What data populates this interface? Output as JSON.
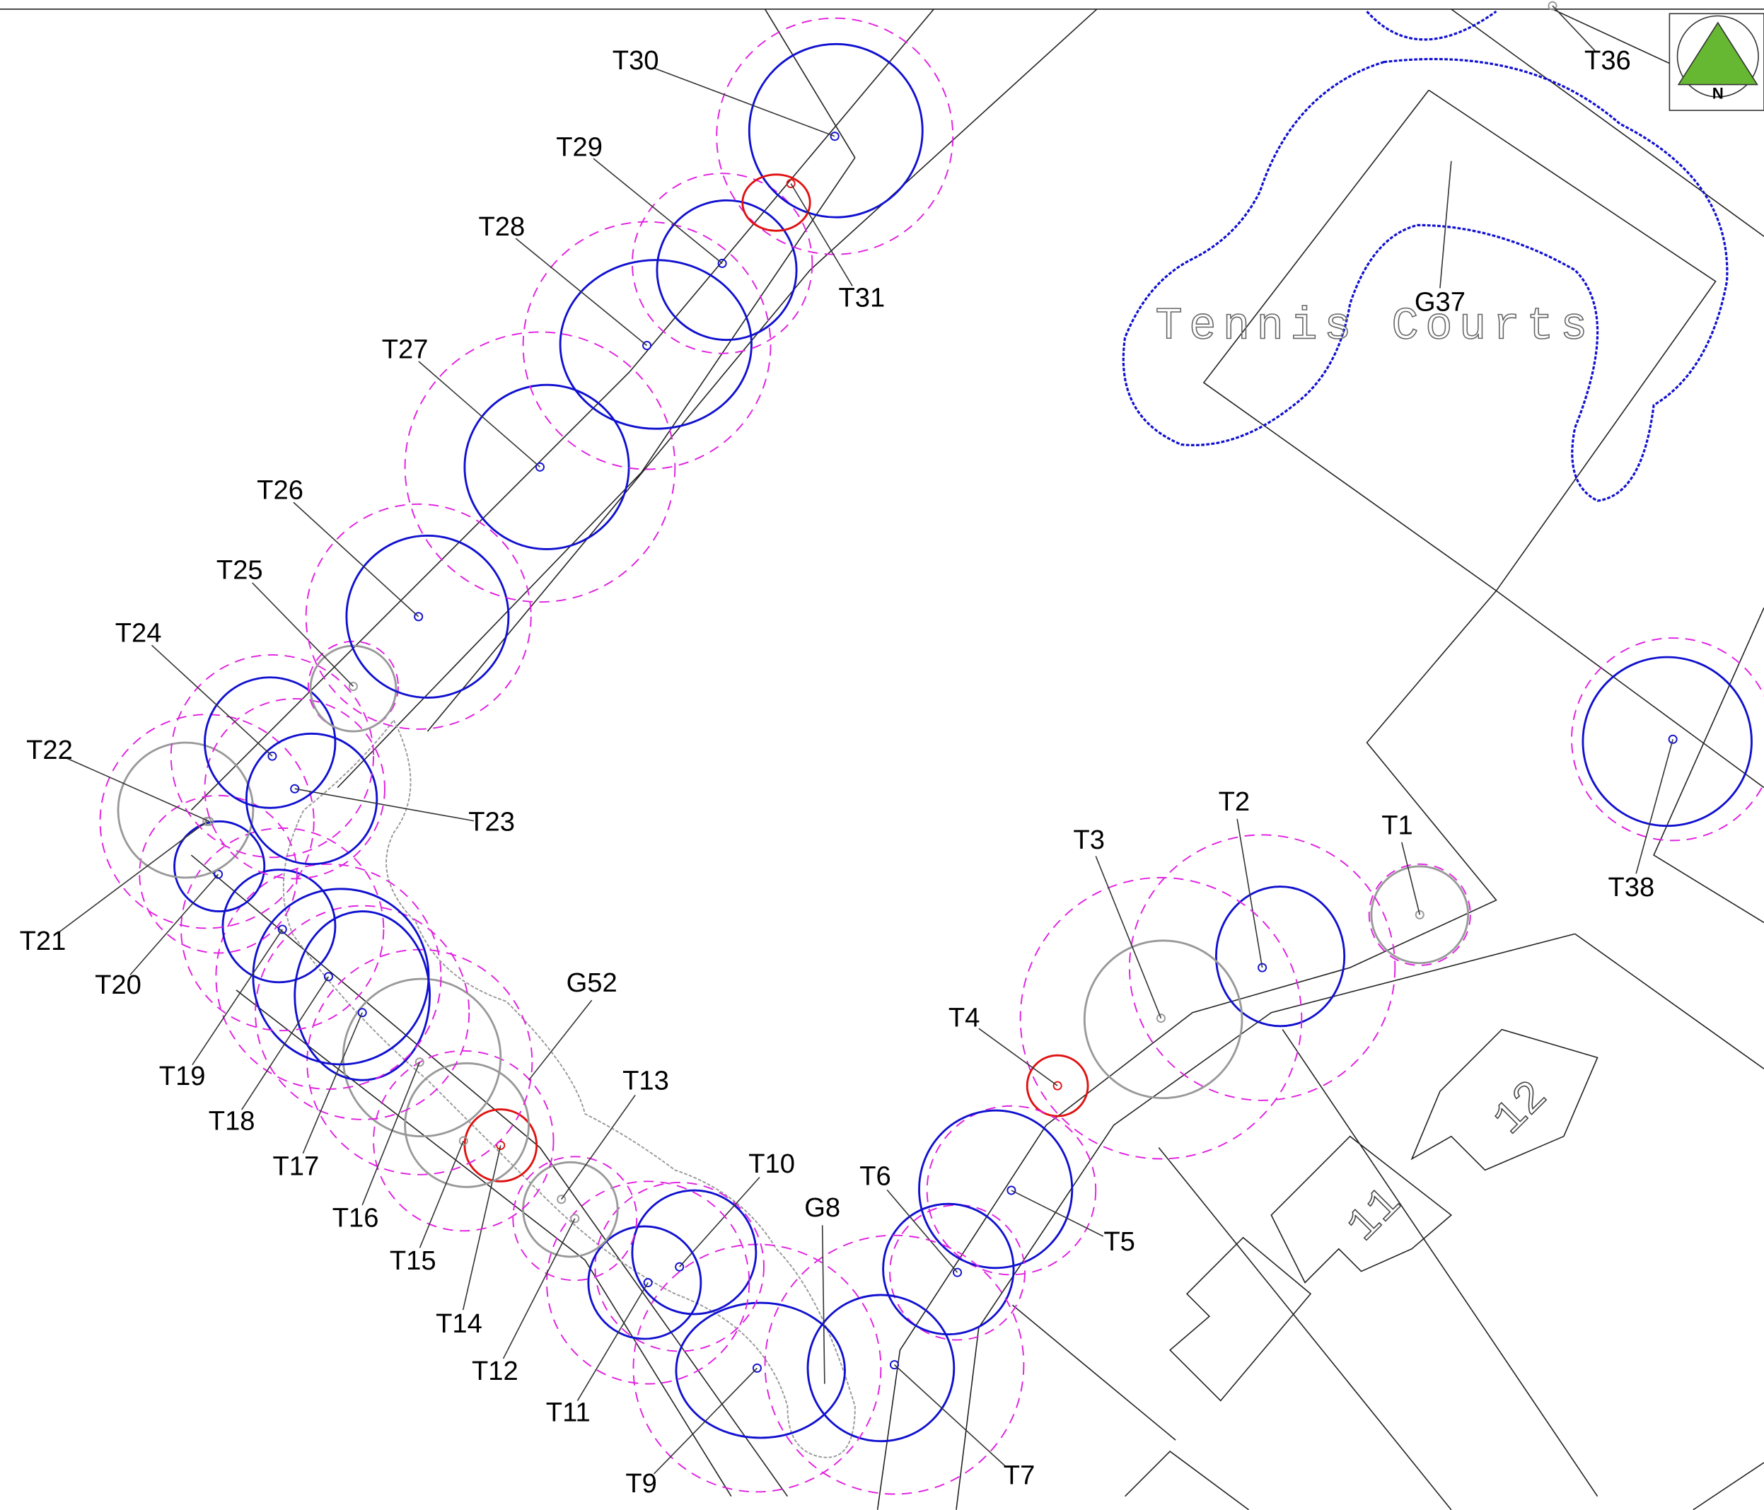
{
  "trees": [
    {
      "label": "T1"
    },
    {
      "label": "T2"
    },
    {
      "label": "T3"
    },
    {
      "label": "T4"
    },
    {
      "label": "T5"
    },
    {
      "label": "T6"
    },
    {
      "label": "T7"
    },
    {
      "label": "T9"
    },
    {
      "label": "T10"
    },
    {
      "label": "T11"
    },
    {
      "label": "T12"
    },
    {
      "label": "T13"
    },
    {
      "label": "T14"
    },
    {
      "label": "T15"
    },
    {
      "label": "T16"
    },
    {
      "label": "T17"
    },
    {
      "label": "T18"
    },
    {
      "label": "T19"
    },
    {
      "label": "T20"
    },
    {
      "label": "T21"
    },
    {
      "label": "T22"
    },
    {
      "label": "T23"
    },
    {
      "label": "T24"
    },
    {
      "label": "T25"
    },
    {
      "label": "T26"
    },
    {
      "label": "T27"
    },
    {
      "label": "T28"
    },
    {
      "label": "T29"
    },
    {
      "label": "T30"
    },
    {
      "label": "T31"
    },
    {
      "label": "T36"
    },
    {
      "label": "T38"
    }
  ],
  "groups": [
    {
      "label": "G37"
    },
    {
      "label": "G52"
    },
    {
      "label": "G8"
    }
  ],
  "site_label": "Tennis Courts",
  "north": "N",
  "plots": [
    "11",
    "12"
  ]
}
